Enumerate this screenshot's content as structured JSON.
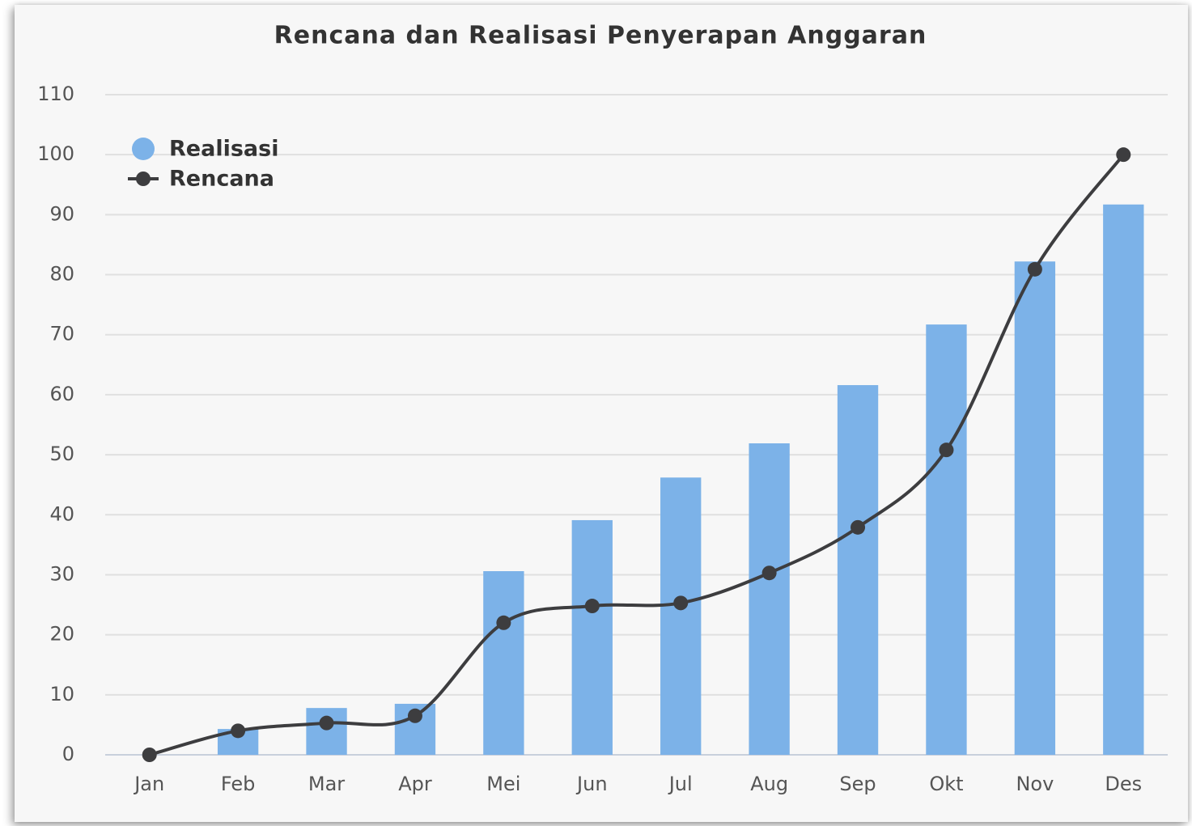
{
  "chart_data": {
    "type": "bar-line",
    "title": "Rencana dan Realisasi Penyerapan Anggaran",
    "categories": [
      "Jan",
      "Feb",
      "Mar",
      "Apr",
      "Mei",
      "Jun",
      "Jul",
      "Aug",
      "Sep",
      "Okt",
      "Nov",
      "Des"
    ],
    "series": [
      {
        "name": "Realisasi",
        "type": "bar",
        "color": "#7cb2e8",
        "values": [
          0,
          4.3,
          7.8,
          8.5,
          30.6,
          39.1,
          46.2,
          51.9,
          61.6,
          71.7,
          82.2,
          91.7
        ]
      },
      {
        "name": "Rencana",
        "type": "line",
        "color": "#3d3d3f",
        "values": [
          0,
          4.0,
          5.3,
          6.5,
          22.0,
          24.8,
          25.3,
          30.3,
          37.9,
          50.8,
          80.9,
          100
        ]
      }
    ],
    "ylim": [
      0,
      110
    ],
    "yticks": [
      0,
      10,
      20,
      30,
      40,
      50,
      60,
      70,
      80,
      90,
      100,
      110
    ],
    "grid": true,
    "legend": "top-left"
  }
}
